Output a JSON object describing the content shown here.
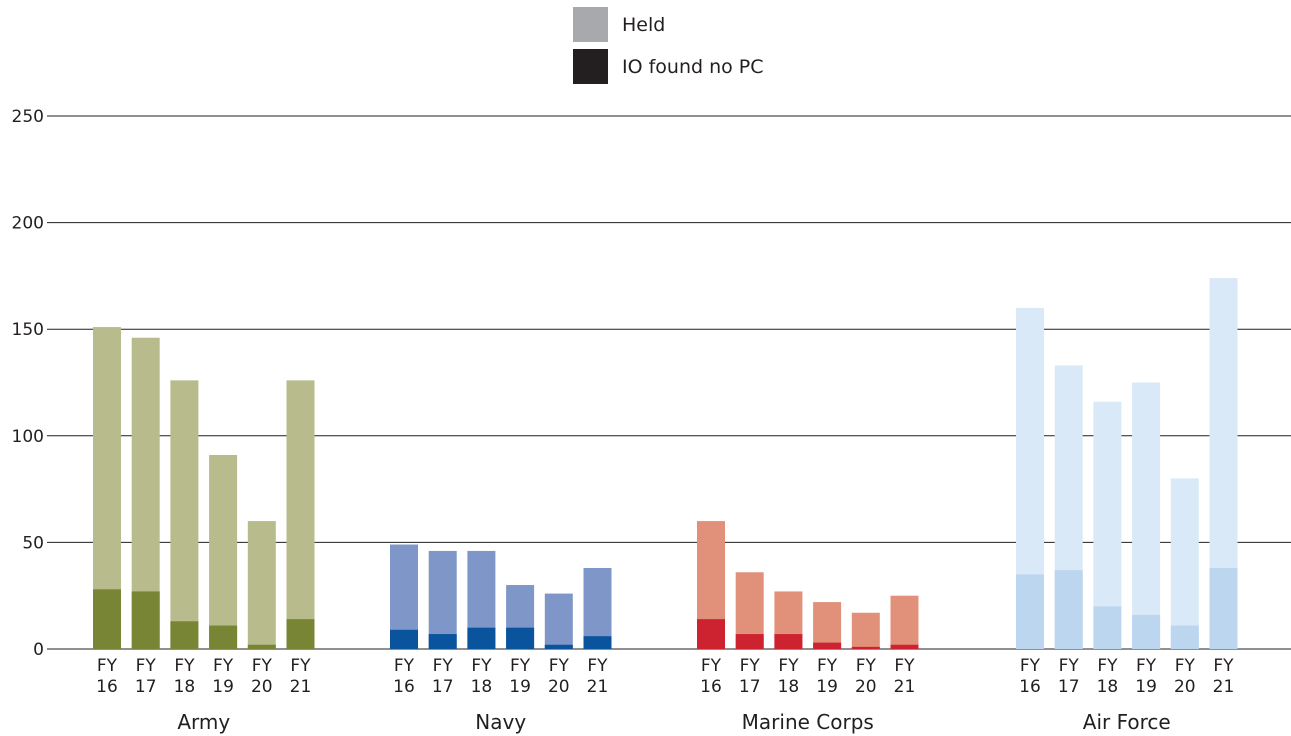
{
  "chart_data": {
    "type": "bar",
    "stacked": false,
    "overlay": true,
    "ylim": [
      0,
      250
    ],
    "yticks": [
      0,
      50,
      100,
      150,
      200,
      250
    ],
    "grid": true,
    "legend_placement": "top-center",
    "legend": [
      {
        "label": "Held",
        "color": "#a7a9ac"
      },
      {
        "label": "IO found no PC",
        "color": "#231f20"
      }
    ],
    "categories": [
      {
        "top": "FY",
        "bottom": "16"
      },
      {
        "top": "FY",
        "bottom": "17"
      },
      {
        "top": "FY",
        "bottom": "18"
      },
      {
        "top": "FY",
        "bottom": "19"
      },
      {
        "top": "FY",
        "bottom": "20"
      },
      {
        "top": "FY",
        "bottom": "21"
      }
    ],
    "groups": [
      {
        "name": "Army",
        "held_color": "#b8bb8b",
        "io_color": "#788535",
        "held": [
          151,
          146,
          126,
          91,
          60,
          126
        ],
        "io_found_no_pc": [
          28,
          27,
          13,
          11,
          2,
          14
        ]
      },
      {
        "name": "Navy",
        "held_color": "#7e97c8",
        "io_color": "#0a539d",
        "held": [
          49,
          46,
          46,
          30,
          26,
          38
        ],
        "io_found_no_pc": [
          9,
          7,
          10,
          10,
          2,
          6
        ]
      },
      {
        "name": "Marine Corps",
        "held_color": "#e19179",
        "io_color": "#cd2330",
        "held": [
          60,
          36,
          27,
          22,
          17,
          25
        ],
        "io_found_no_pc": [
          14,
          7,
          7,
          3,
          1,
          2
        ]
      },
      {
        "name": "Air Force",
        "held_color": "#dae9f7",
        "io_color": "#bcd6f0",
        "held": [
          160,
          133,
          116,
          125,
          80,
          174
        ],
        "io_found_no_pc": [
          35,
          37,
          20,
          16,
          11,
          38
        ]
      }
    ]
  }
}
